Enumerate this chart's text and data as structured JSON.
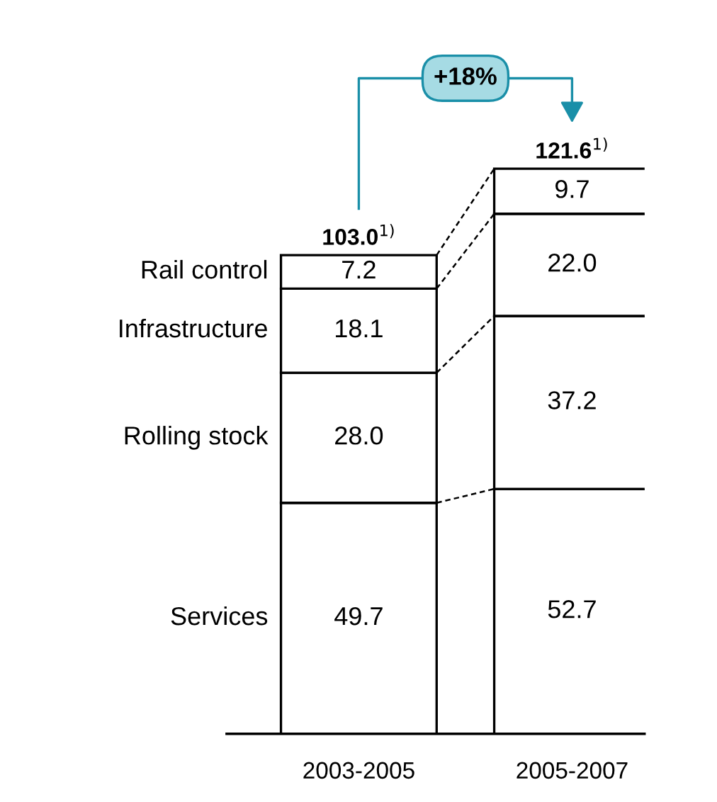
{
  "chart_data": {
    "type": "bar",
    "stacked": true,
    "categories": [
      "2003-2005",
      "2005-2007"
    ],
    "series": [
      {
        "name": "Services",
        "color": "#ffffff",
        "values": [
          49.7,
          52.7
        ],
        "value_labels": [
          "49.7",
          "52.7"
        ]
      },
      {
        "name": "Rolling stock",
        "color": "#ffffff",
        "values": [
          28.0,
          37.2
        ],
        "value_labels": [
          "28.0",
          "37.2"
        ]
      },
      {
        "name": "Infrastructure",
        "color": "#ffffff",
        "values": [
          18.1,
          22.0
        ],
        "value_labels": [
          "18.1",
          "22.0"
        ]
      },
      {
        "name": "Rail control",
        "color": "#ffffff",
        "values": [
          7.2,
          9.7
        ],
        "value_labels": [
          "7.2",
          "9.7"
        ]
      }
    ],
    "totals": [
      "103.0$^{1)}$",
      "121.6$^{1)}$"
    ],
    "annotations": [
      "+18%"
    ],
    "legend": false,
    "grid": false,
    "tick_labels": "x"
  }
}
